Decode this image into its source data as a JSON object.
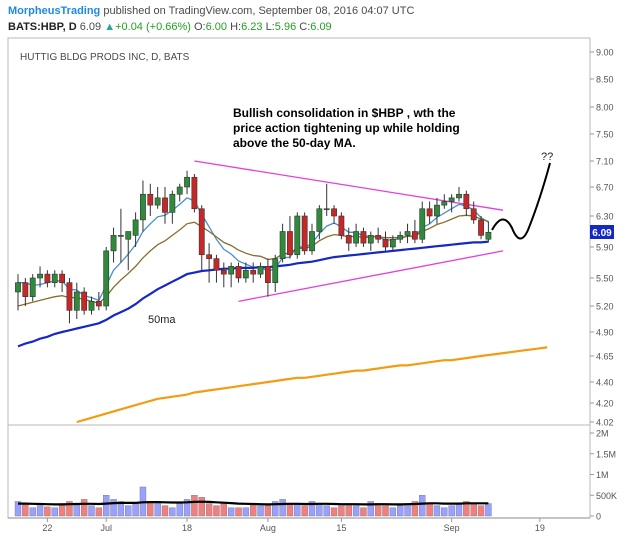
{
  "header": {
    "author": "MorpheusTrading",
    "published_text": "published on TradingView.com, September 08, 2016 04:07 UTC",
    "symbol_line": "BATS:HBP, D",
    "last": "6.09",
    "change": "+0.04 (+0.66%)",
    "ohlc": {
      "o_label": "O:",
      "o": "6.00",
      "h_label": "H:",
      "h": "6.23",
      "l_label": "L:",
      "l": "5.96",
      "c_label": "C:",
      "c": "6.09"
    }
  },
  "chart_title": "HUTTIG BLDG PRODS INC, D, BATS",
  "annotation": "Bullish consolidation in $HBP , wth the price action tightening up while holding above the 50-day MA.",
  "annotation_lines": [
    "Bullish consolidation in $HBP , wth the",
    "price action tightening up while holding",
    "above the 50-day MA."
  ],
  "label_50ma": "50ma",
  "label_question": "??",
  "last_price_badge": "6.09",
  "colors": {
    "up": "#2e8b3a",
    "down": "#c62828",
    "ma_fast": "#4a90c8",
    "ma_mid": "#8b6d2e",
    "ma50": "#1428c8",
    "ma200": "#f39c12",
    "trendline": "#e040e0",
    "volume_up": "#9aa0ff",
    "volume_down": "#f08080",
    "volume_ma": "#000000"
  },
  "chart_data": {
    "type": "candlestick",
    "price_axis": {
      "min": 4.0,
      "max": 9.1,
      "ticks": [
        4.02,
        4.2,
        4.4,
        4.65,
        4.9,
        5.2,
        5.5,
        5.9,
        6.3,
        6.7,
        7.1,
        7.5,
        8.0,
        8.5,
        9.0
      ],
      "tick_labels": [
        "4.02",
        "4.20",
        "4.40",
        "4.65",
        "4.90",
        "5.20",
        "5.50",
        "5.90",
        "6.30",
        "6.70",
        "7.10",
        "7.50",
        "8.00",
        "8.50",
        "9.00"
      ]
    },
    "volume_axis": {
      "ticks": [
        0,
        500000,
        1000000,
        1500000,
        2000000
      ],
      "tick_labels": [
        "0",
        "500K",
        "1M",
        "1.5M",
        "2M"
      ]
    },
    "time_axis": {
      "labels": [
        "22",
        "Jul",
        "18",
        "Aug",
        "15",
        "Sep",
        "19"
      ],
      "positions": [
        4,
        12,
        23,
        34,
        44,
        59,
        71
      ]
    },
    "candles": [
      {
        "o": 5.35,
        "h": 5.55,
        "l": 5.15,
        "c": 5.45,
        "v": 350000
      },
      {
        "o": 5.45,
        "h": 5.5,
        "l": 5.2,
        "c": 5.3,
        "v": 300000
      },
      {
        "o": 5.3,
        "h": 5.55,
        "l": 5.25,
        "c": 5.5,
        "v": 200000
      },
      {
        "o": 5.5,
        "h": 5.65,
        "l": 5.4,
        "c": 5.55,
        "v": 250000
      },
      {
        "o": 5.55,
        "h": 5.6,
        "l": 5.4,
        "c": 5.45,
        "v": 220000
      },
      {
        "o": 5.45,
        "h": 5.6,
        "l": 5.4,
        "c": 5.55,
        "v": 200000
      },
      {
        "o": 5.55,
        "h": 5.6,
        "l": 5.35,
        "c": 5.45,
        "v": 300000
      },
      {
        "o": 5.45,
        "h": 5.5,
        "l": 5.0,
        "c": 5.15,
        "v": 350000
      },
      {
        "o": 5.15,
        "h": 5.45,
        "l": 5.05,
        "c": 5.35,
        "v": 300000
      },
      {
        "o": 5.35,
        "h": 5.4,
        "l": 5.1,
        "c": 5.15,
        "v": 400000
      },
      {
        "o": 5.15,
        "h": 5.3,
        "l": 5.1,
        "c": 5.25,
        "v": 250000
      },
      {
        "o": 5.25,
        "h": 5.35,
        "l": 5.15,
        "c": 5.2,
        "v": 200000
      },
      {
        "o": 5.2,
        "h": 5.9,
        "l": 5.15,
        "c": 5.85,
        "v": 500000
      },
      {
        "o": 5.85,
        "h": 6.15,
        "l": 5.7,
        "c": 6.05,
        "v": 400000
      },
      {
        "o": 6.05,
        "h": 6.4,
        "l": 5.7,
        "c": 6.05,
        "v": 350000
      },
      {
        "o": 6.0,
        "h": 6.1,
        "l": 5.6,
        "c": 6.1,
        "v": 250000
      },
      {
        "o": 6.05,
        "h": 6.35,
        "l": 5.9,
        "c": 6.25,
        "v": 300000
      },
      {
        "o": 6.25,
        "h": 6.8,
        "l": 6.1,
        "c": 6.6,
        "v": 700000
      },
      {
        "o": 6.6,
        "h": 6.75,
        "l": 6.3,
        "c": 6.45,
        "v": 350000
      },
      {
        "o": 6.45,
        "h": 6.7,
        "l": 6.4,
        "c": 6.55,
        "v": 300000
      },
      {
        "o": 6.55,
        "h": 6.7,
        "l": 6.2,
        "c": 6.35,
        "v": 250000
      },
      {
        "o": 6.35,
        "h": 6.65,
        "l": 6.2,
        "c": 6.6,
        "v": 200000
      },
      {
        "o": 6.6,
        "h": 6.75,
        "l": 6.5,
        "c": 6.7,
        "v": 300000
      },
      {
        "o": 6.7,
        "h": 6.95,
        "l": 6.6,
        "c": 6.85,
        "v": 400000
      },
      {
        "o": 6.85,
        "h": 6.9,
        "l": 6.35,
        "c": 6.4,
        "v": 500000
      },
      {
        "o": 6.4,
        "h": 6.45,
        "l": 5.6,
        "c": 5.8,
        "v": 450000
      },
      {
        "o": 5.8,
        "h": 5.95,
        "l": 5.45,
        "c": 5.75,
        "v": 300000
      },
      {
        "o": 5.75,
        "h": 5.8,
        "l": 5.45,
        "c": 5.6,
        "v": 250000
      },
      {
        "o": 5.6,
        "h": 5.7,
        "l": 5.4,
        "c": 5.55,
        "v": 300000
      },
      {
        "o": 5.55,
        "h": 5.7,
        "l": 5.4,
        "c": 5.65,
        "v": 200000
      },
      {
        "o": 5.65,
        "h": 5.7,
        "l": 5.45,
        "c": 5.5,
        "v": 200000
      },
      {
        "o": 5.5,
        "h": 5.7,
        "l": 5.45,
        "c": 5.6,
        "v": 200000
      },
      {
        "o": 5.6,
        "h": 5.7,
        "l": 5.45,
        "c": 5.55,
        "v": 300000
      },
      {
        "o": 5.55,
        "h": 5.7,
        "l": 5.5,
        "c": 5.65,
        "v": 250000
      },
      {
        "o": 5.65,
        "h": 5.75,
        "l": 5.3,
        "c": 5.45,
        "v": 250000
      },
      {
        "o": 5.45,
        "h": 5.8,
        "l": 5.35,
        "c": 5.75,
        "v": 350000
      },
      {
        "o": 5.75,
        "h": 6.2,
        "l": 5.7,
        "c": 6.1,
        "v": 400000
      },
      {
        "o": 6.1,
        "h": 6.3,
        "l": 5.75,
        "c": 5.8,
        "v": 300000
      },
      {
        "o": 5.8,
        "h": 6.35,
        "l": 5.75,
        "c": 6.3,
        "v": 300000
      },
      {
        "o": 6.3,
        "h": 6.35,
        "l": 5.8,
        "c": 5.85,
        "v": 250000
      },
      {
        "o": 5.85,
        "h": 6.2,
        "l": 5.8,
        "c": 6.1,
        "v": 350000
      },
      {
        "o": 6.1,
        "h": 6.45,
        "l": 6.0,
        "c": 6.4,
        "v": 300000
      },
      {
        "o": 6.4,
        "h": 6.75,
        "l": 6.3,
        "c": 6.4,
        "v": 250000
      },
      {
        "o": 6.4,
        "h": 6.45,
        "l": 6.2,
        "c": 6.3,
        "v": 200000
      },
      {
        "o": 6.3,
        "h": 6.35,
        "l": 6.0,
        "c": 6.05,
        "v": 250000
      },
      {
        "o": 6.05,
        "h": 6.15,
        "l": 5.85,
        "c": 5.95,
        "v": 300000
      },
      {
        "o": 5.95,
        "h": 6.2,
        "l": 5.9,
        "c": 6.1,
        "v": 250000
      },
      {
        "o": 6.1,
        "h": 6.15,
        "l": 5.9,
        "c": 5.95,
        "v": 200000
      },
      {
        "o": 5.95,
        "h": 6.1,
        "l": 5.85,
        "c": 6.05,
        "v": 350000
      },
      {
        "o": 6.05,
        "h": 6.15,
        "l": 5.95,
        "c": 6.0,
        "v": 300000
      },
      {
        "o": 6.0,
        "h": 6.1,
        "l": 5.85,
        "c": 5.9,
        "v": 250000
      },
      {
        "o": 5.9,
        "h": 6.05,
        "l": 5.85,
        "c": 6.0,
        "v": 200000
      },
      {
        "o": 6.0,
        "h": 6.1,
        "l": 5.95,
        "c": 6.05,
        "v": 250000
      },
      {
        "o": 6.05,
        "h": 6.2,
        "l": 5.95,
        "c": 6.1,
        "v": 300000
      },
      {
        "o": 6.1,
        "h": 6.25,
        "l": 5.95,
        "c": 6.0,
        "v": 350000
      },
      {
        "o": 6.0,
        "h": 6.5,
        "l": 5.95,
        "c": 6.4,
        "v": 500000
      },
      {
        "o": 6.4,
        "h": 6.5,
        "l": 6.2,
        "c": 6.3,
        "v": 300000
      },
      {
        "o": 6.3,
        "h": 6.55,
        "l": 6.2,
        "c": 6.45,
        "v": 250000
      },
      {
        "o": 6.45,
        "h": 6.6,
        "l": 6.4,
        "c": 6.5,
        "v": 200000
      },
      {
        "o": 6.5,
        "h": 6.6,
        "l": 6.35,
        "c": 6.55,
        "v": 250000
      },
      {
        "o": 6.55,
        "h": 6.7,
        "l": 6.5,
        "c": 6.6,
        "v": 300000
      },
      {
        "o": 6.6,
        "h": 6.65,
        "l": 6.3,
        "c": 6.4,
        "v": 350000
      },
      {
        "o": 6.4,
        "h": 6.5,
        "l": 6.2,
        "c": 6.25,
        "v": 300000
      },
      {
        "o": 6.25,
        "h": 6.3,
        "l": 6.0,
        "c": 6.05,
        "v": 250000
      },
      {
        "o": 6.0,
        "h": 6.23,
        "l": 5.96,
        "c": 6.09,
        "v": 300000
      }
    ],
    "series": [
      {
        "values": [
          5.45,
          5.45,
          5.42,
          5.43,
          5.45,
          5.47,
          5.47,
          5.38,
          5.37,
          5.31,
          5.29,
          5.26,
          5.42,
          5.6,
          5.7,
          5.81,
          5.93,
          6.1,
          6.2,
          6.29,
          6.31,
          6.38,
          6.46,
          6.55,
          6.51,
          6.32,
          6.16,
          6.0,
          5.87,
          5.81,
          5.72,
          5.68,
          5.64,
          5.65,
          5.58,
          5.63,
          5.76,
          5.77,
          5.91,
          5.89,
          5.95,
          6.07,
          6.17,
          6.21,
          6.16,
          6.09,
          6.09,
          6.04,
          6.04,
          6.03,
          5.99,
          5.99,
          6.01,
          6.04,
          6.03,
          6.15,
          6.2,
          6.28,
          6.34,
          6.4,
          6.46,
          6.44,
          6.38,
          6.28,
          6.22
        ]
      },
      {
        "values": [
          5.2,
          5.22,
          5.24,
          5.26,
          5.28,
          5.3,
          5.31,
          5.29,
          5.29,
          5.27,
          5.25,
          5.23,
          5.3,
          5.4,
          5.48,
          5.56,
          5.65,
          5.76,
          5.85,
          5.93,
          5.98,
          6.05,
          6.12,
          6.2,
          6.22,
          6.16,
          6.1,
          6.03,
          5.96,
          5.92,
          5.86,
          5.82,
          5.79,
          5.78,
          5.74,
          5.75,
          5.81,
          5.82,
          5.89,
          5.88,
          5.91,
          5.98,
          6.03,
          6.06,
          6.05,
          6.03,
          6.04,
          6.02,
          6.03,
          6.03,
          6.02,
          6.02,
          6.02,
          6.04,
          6.04,
          6.1,
          6.14,
          6.19,
          6.22,
          6.26,
          6.3,
          6.31,
          6.3,
          6.26,
          6.23
        ]
      },
      {
        "values": [
          4.75,
          4.78,
          4.8,
          4.83,
          4.85,
          4.88,
          4.9,
          4.92,
          4.94,
          4.96,
          4.98,
          5.0,
          5.04,
          5.09,
          5.13,
          5.17,
          5.22,
          5.28,
          5.33,
          5.38,
          5.42,
          5.46,
          5.5,
          5.55,
          5.57,
          5.59,
          5.6,
          5.61,
          5.62,
          5.62,
          5.63,
          5.63,
          5.63,
          5.64,
          5.64,
          5.65,
          5.66,
          5.67,
          5.69,
          5.7,
          5.71,
          5.73,
          5.75,
          5.77,
          5.78,
          5.79,
          5.8,
          5.81,
          5.82,
          5.83,
          5.84,
          5.85,
          5.86,
          5.87,
          5.88,
          5.89,
          5.9,
          5.91,
          5.92,
          5.93,
          5.94,
          5.95,
          5.96,
          5.96,
          5.97
        ]
      },
      {
        "values": [
          4.02,
          4.04,
          4.06,
          4.08,
          4.1,
          4.12,
          4.14,
          4.16,
          4.18,
          4.2,
          4.22,
          4.24,
          4.25,
          4.26,
          4.27,
          4.28,
          4.3,
          4.31,
          4.32,
          4.33,
          4.34,
          4.35,
          4.36,
          4.37,
          4.38,
          4.39,
          4.4,
          4.41,
          4.42,
          4.43,
          4.44,
          4.44,
          4.45,
          4.46,
          4.47,
          4.48,
          4.49,
          4.5,
          4.51,
          4.51,
          4.52,
          4.53,
          4.54,
          4.55,
          4.56,
          4.56,
          4.57,
          4.58,
          4.59,
          4.6,
          4.61,
          4.61,
          4.62,
          4.63,
          4.64,
          4.65,
          4.66,
          4.67,
          4.68,
          4.69,
          4.7,
          4.71,
          4.72,
          4.73,
          4.74
        ]
      }
    ],
    "volume_ma": [
      300000,
      300000,
      295000,
      290000,
      285000,
      280000,
      280000,
      285000,
      290000,
      295000,
      295000,
      290000,
      300000,
      310000,
      315000,
      315000,
      315000,
      330000,
      335000,
      335000,
      330000,
      325000,
      325000,
      330000,
      340000,
      345000,
      340000,
      330000,
      320000,
      310000,
      300000,
      295000,
      290000,
      285000,
      280000,
      285000,
      290000,
      295000,
      295000,
      290000,
      290000,
      295000,
      295000,
      290000,
      285000,
      285000,
      285000,
      280000,
      280000,
      285000,
      285000,
      280000,
      280000,
      285000,
      290000,
      300000,
      305000,
      305000,
      300000,
      300000,
      300000,
      305000,
      305000,
      305000,
      305000
    ],
    "trendlines": [
      {
        "from": {
          "index": 24,
          "price": 7.1
        },
        "to": {
          "index": 66,
          "price": 6.38
        }
      },
      {
        "from": {
          "index": 30,
          "price": 5.25
        },
        "to": {
          "index": 66,
          "price": 5.85
        }
      }
    ]
  }
}
